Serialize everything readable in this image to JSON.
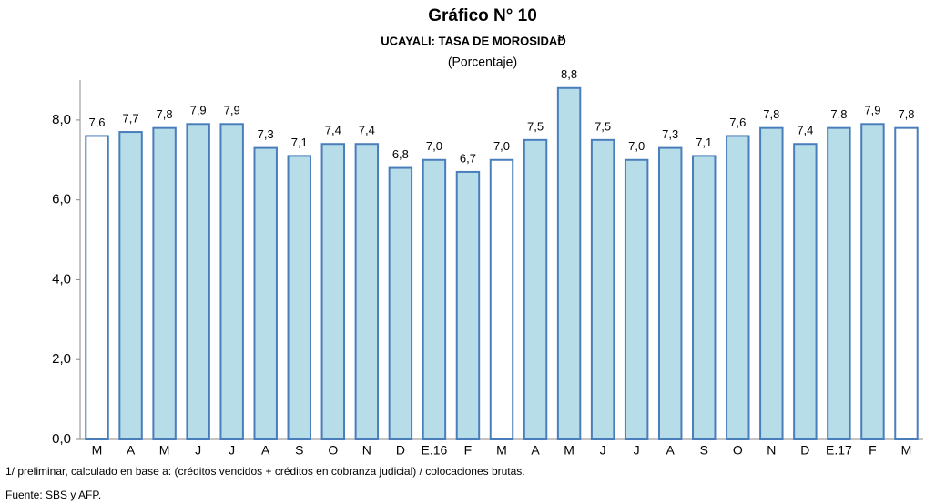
{
  "chart_data": {
    "type": "bar",
    "title": "Gráfico N° 10",
    "subtitle": "UCAYALI: TASA DE MOROSIDAD",
    "subtitle_note": "1/",
    "unit_label": "(Porcentaje)",
    "categories": [
      "M",
      "A",
      "M",
      "J",
      "J",
      "A",
      "S",
      "O",
      "N",
      "D",
      "E.16",
      "F",
      "M",
      "A",
      "M",
      "J",
      "J",
      "A",
      "S",
      "O",
      "N",
      "D",
      "E.17",
      "F",
      "M"
    ],
    "values": [
      7.6,
      7.7,
      7.8,
      7.9,
      7.9,
      7.3,
      7.1,
      7.4,
      7.4,
      6.8,
      7.0,
      6.7,
      7.0,
      7.5,
      8.8,
      7.5,
      7.0,
      7.3,
      7.1,
      7.6,
      7.8,
      7.4,
      7.8,
      7.9,
      7.8
    ],
    "value_labels": [
      "7,6",
      "7,7",
      "7,8",
      "7,9",
      "7,9",
      "7,3",
      "7,1",
      "7,4",
      "7,4",
      "6,8",
      "7,0",
      "6,7",
      "7,0",
      "7,5",
      "8,8",
      "7,5",
      "7,0",
      "7,3",
      "7,1",
      "7,6",
      "7,8",
      "7,4",
      "7,8",
      "7,9",
      "7,8"
    ],
    "colors": [
      "#ffffff",
      "#b7dde8",
      "#b7dde8",
      "#b7dde8",
      "#b7dde8",
      "#b7dde8",
      "#b7dde8",
      "#b7dde8",
      "#b7dde8",
      "#b7dde8",
      "#b7dde8",
      "#b7dde8",
      "#ffffff",
      "#b7dde8",
      "#b7dde8",
      "#b7dde8",
      "#b7dde8",
      "#b7dde8",
      "#b7dde8",
      "#b7dde8",
      "#b7dde8",
      "#b7dde8",
      "#b7dde8",
      "#b7dde8",
      "#ffffff"
    ],
    "edge_color": "#4a7ebb",
    "ylim": [
      0,
      9
    ],
    "yticks": [
      {
        "value": 0,
        "label": "0,0"
      },
      {
        "value": 2,
        "label": "2,0"
      },
      {
        "value": 4,
        "label": "4,0"
      },
      {
        "value": 6,
        "label": "6,0"
      },
      {
        "value": 8,
        "label": "8,0"
      }
    ],
    "grid": false,
    "footnote": "1/ preliminar, calculado en base a: (créditos vencidos + créditos en cobranza judicial) / colocaciones brutas.",
    "source": "Fuente: SBS  y AFP."
  }
}
